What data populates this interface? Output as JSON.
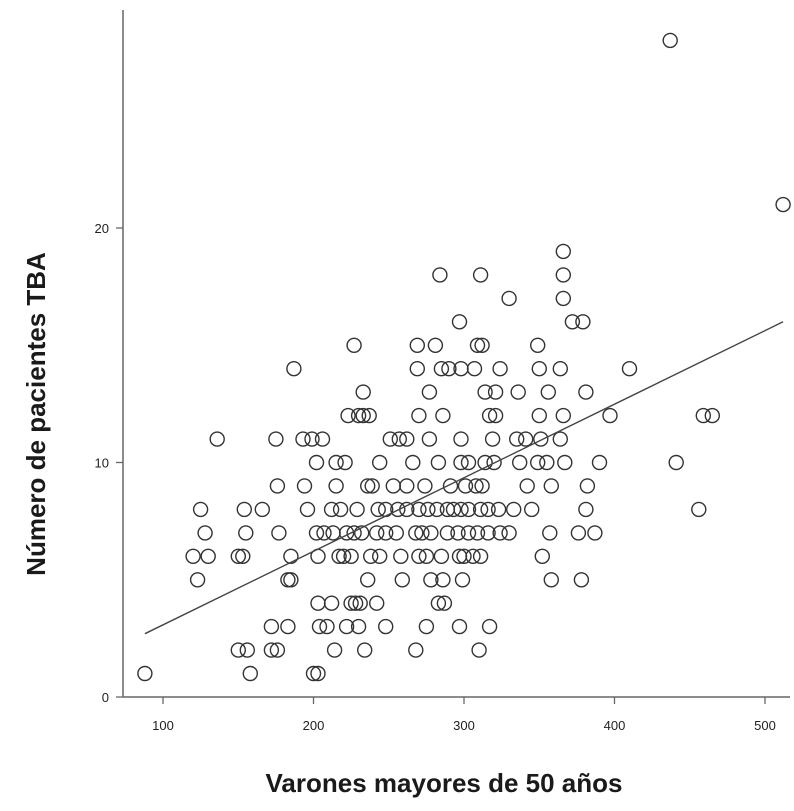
{
  "chart_data": {
    "type": "scatter",
    "title": "",
    "xlabel": "Varones mayores de 50 años",
    "ylabel": "Número de pacientes TBA",
    "xlim": [
      75,
      520
    ],
    "ylim": [
      0,
      29
    ],
    "x_ticks": [
      100,
      200,
      300,
      400,
      500
    ],
    "y_ticks": [
      0,
      10,
      20
    ],
    "grid": false,
    "legend": "none",
    "marker": "open-circle",
    "colors": {
      "marker_stroke": "#333333",
      "line": "#444444",
      "axis": "#666666"
    },
    "trendline": {
      "x": [
        88,
        512
      ],
      "y": [
        2.7,
        16.0
      ]
    },
    "series": [
      {
        "points": [
          [
            88,
            1
          ],
          [
            200,
            1
          ],
          [
            203,
            1
          ],
          [
            158,
            1
          ],
          [
            150,
            2
          ],
          [
            156,
            2
          ],
          [
            172,
            2
          ],
          [
            176,
            2
          ],
          [
            214,
            2
          ],
          [
            234,
            2
          ],
          [
            268,
            2
          ],
          [
            310,
            2
          ],
          [
            172,
            3
          ],
          [
            183,
            3
          ],
          [
            204,
            3
          ],
          [
            209,
            3
          ],
          [
            222,
            3
          ],
          [
            230,
            3
          ],
          [
            248,
            3
          ],
          [
            275,
            3
          ],
          [
            297,
            3
          ],
          [
            317,
            3
          ],
          [
            203,
            4
          ],
          [
            212,
            4
          ],
          [
            225,
            4
          ],
          [
            228,
            4
          ],
          [
            231,
            4
          ],
          [
            242,
            4
          ],
          [
            283,
            4
          ],
          [
            287,
            4
          ],
          [
            123,
            5
          ],
          [
            183,
            5
          ],
          [
            185,
            5
          ],
          [
            236,
            5
          ],
          [
            259,
            5
          ],
          [
            278,
            5
          ],
          [
            286,
            5
          ],
          [
            299,
            5
          ],
          [
            358,
            5
          ],
          [
            378,
            5
          ],
          [
            120,
            6
          ],
          [
            130,
            6
          ],
          [
            150,
            6
          ],
          [
            153,
            6
          ],
          [
            185,
            6
          ],
          [
            203,
            6
          ],
          [
            217,
            6
          ],
          [
            220,
            6
          ],
          [
            225,
            6
          ],
          [
            238,
            6
          ],
          [
            244,
            6
          ],
          [
            258,
            6
          ],
          [
            270,
            6
          ],
          [
            275,
            6
          ],
          [
            285,
            6
          ],
          [
            297,
            6
          ],
          [
            300,
            6
          ],
          [
            306,
            6
          ],
          [
            311,
            6
          ],
          [
            352,
            6
          ],
          [
            128,
            7
          ],
          [
            155,
            7
          ],
          [
            177,
            7
          ],
          [
            202,
            7
          ],
          [
            207,
            7
          ],
          [
            213,
            7
          ],
          [
            222,
            7
          ],
          [
            227,
            7
          ],
          [
            232,
            7
          ],
          [
            242,
            7
          ],
          [
            248,
            7
          ],
          [
            255,
            7
          ],
          [
            268,
            7
          ],
          [
            272,
            7
          ],
          [
            278,
            7
          ],
          [
            289,
            7
          ],
          [
            296,
            7
          ],
          [
            303,
            7
          ],
          [
            309,
            7
          ],
          [
            316,
            7
          ],
          [
            324,
            7
          ],
          [
            330,
            7
          ],
          [
            357,
            7
          ],
          [
            376,
            7
          ],
          [
            387,
            7
          ],
          [
            125,
            8
          ],
          [
            154,
            8
          ],
          [
            166,
            8
          ],
          [
            196,
            8
          ],
          [
            212,
            8
          ],
          [
            218,
            8
          ],
          [
            229,
            8
          ],
          [
            243,
            8
          ],
          [
            248,
            8
          ],
          [
            256,
            8
          ],
          [
            262,
            8
          ],
          [
            270,
            8
          ],
          [
            276,
            8
          ],
          [
            282,
            8
          ],
          [
            289,
            8
          ],
          [
            293,
            8
          ],
          [
            298,
            8
          ],
          [
            303,
            8
          ],
          [
            311,
            8
          ],
          [
            316,
            8
          ],
          [
            323,
            8
          ],
          [
            333,
            8
          ],
          [
            345,
            8
          ],
          [
            381,
            8
          ],
          [
            456,
            8
          ],
          [
            176,
            9
          ],
          [
            194,
            9
          ],
          [
            215,
            9
          ],
          [
            236,
            9
          ],
          [
            239,
            9
          ],
          [
            253,
            9
          ],
          [
            262,
            9
          ],
          [
            274,
            9
          ],
          [
            291,
            9
          ],
          [
            301,
            9
          ],
          [
            308,
            9
          ],
          [
            312,
            9
          ],
          [
            342,
            9
          ],
          [
            358,
            9
          ],
          [
            382,
            9
          ],
          [
            202,
            10
          ],
          [
            215,
            10
          ],
          [
            221,
            10
          ],
          [
            244,
            10
          ],
          [
            266,
            10
          ],
          [
            283,
            10
          ],
          [
            298,
            10
          ],
          [
            303,
            10
          ],
          [
            314,
            10
          ],
          [
            320,
            10
          ],
          [
            337,
            10
          ],
          [
            349,
            10
          ],
          [
            355,
            10
          ],
          [
            367,
            10
          ],
          [
            390,
            10
          ],
          [
            441,
            10
          ],
          [
            136,
            11
          ],
          [
            175,
            11
          ],
          [
            193,
            11
          ],
          [
            199,
            11
          ],
          [
            206,
            11
          ],
          [
            251,
            11
          ],
          [
            257,
            11
          ],
          [
            262,
            11
          ],
          [
            277,
            11
          ],
          [
            298,
            11
          ],
          [
            319,
            11
          ],
          [
            335,
            11
          ],
          [
            341,
            11
          ],
          [
            351,
            11
          ],
          [
            364,
            11
          ],
          [
            223,
            12
          ],
          [
            230,
            12
          ],
          [
            233,
            12
          ],
          [
            237,
            12
          ],
          [
            270,
            12
          ],
          [
            286,
            12
          ],
          [
            317,
            12
          ],
          [
            321,
            12
          ],
          [
            350,
            12
          ],
          [
            366,
            12
          ],
          [
            397,
            12
          ],
          [
            459,
            12
          ],
          [
            465,
            12
          ],
          [
            233,
            13
          ],
          [
            277,
            13
          ],
          [
            314,
            13
          ],
          [
            321,
            13
          ],
          [
            336,
            13
          ],
          [
            356,
            13
          ],
          [
            381,
            13
          ],
          [
            187,
            14
          ],
          [
            269,
            14
          ],
          [
            285,
            14
          ],
          [
            290,
            14
          ],
          [
            298,
            14
          ],
          [
            307,
            14
          ],
          [
            324,
            14
          ],
          [
            350,
            14
          ],
          [
            364,
            14
          ],
          [
            410,
            14
          ],
          [
            227,
            15
          ],
          [
            269,
            15
          ],
          [
            281,
            15
          ],
          [
            309,
            15
          ],
          [
            312,
            15
          ],
          [
            349,
            15
          ],
          [
            297,
            16
          ],
          [
            372,
            16
          ],
          [
            379,
            16
          ],
          [
            330,
            17
          ],
          [
            366,
            17
          ],
          [
            284,
            18
          ],
          [
            311,
            18
          ],
          [
            366,
            18
          ],
          [
            366,
            19
          ],
          [
            512,
            21
          ],
          [
            437,
            28
          ]
        ]
      }
    ]
  }
}
